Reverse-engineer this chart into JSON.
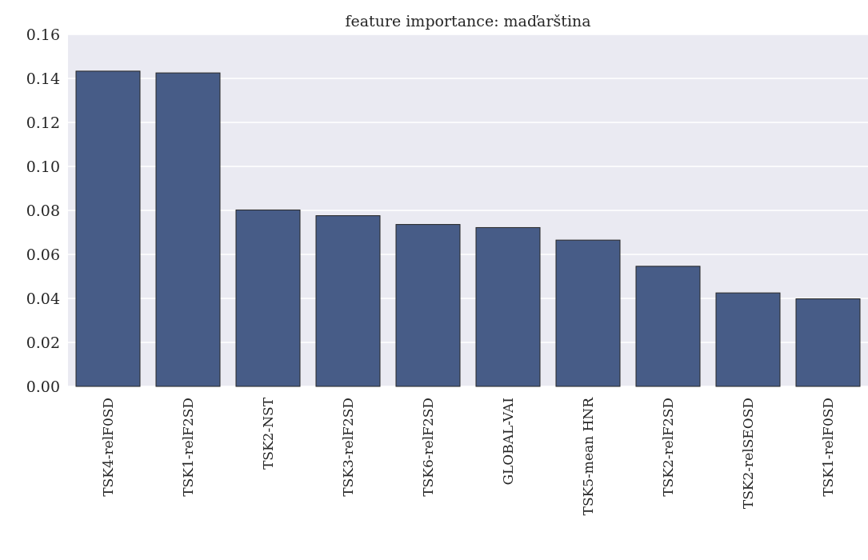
{
  "chart_data": {
    "type": "bar",
    "title": "feature importance: maďarština",
    "categories": [
      "TSK4-relF0SD",
      "TSK1-relF2SD",
      "TSK2-NST",
      "TSK3-relF2SD",
      "TSK6-relF2SD",
      "GLOBAL-VAI",
      "TSK5-mean HNR",
      "TSK2-relF2SD",
      "TSK2-relSEOSD",
      "TSK1-relF0SD"
    ],
    "values": [
      0.1433,
      0.1425,
      0.0802,
      0.0776,
      0.0736,
      0.0722,
      0.0665,
      0.0546,
      0.0425,
      0.0398
    ],
    "color": "#475c87",
    "ylim": [
      0,
      0.16
    ],
    "yticks": [
      {
        "value": 0,
        "label": "0.00"
      },
      {
        "value": 0.02,
        "label": "0.02"
      },
      {
        "value": 0.04,
        "label": "0.04"
      },
      {
        "value": 0.06,
        "label": "0.06"
      },
      {
        "value": 0.08,
        "label": "0.08"
      },
      {
        "value": 0.1,
        "label": "0.10"
      },
      {
        "value": 0.12,
        "label": "0.12"
      },
      {
        "value": 0.14,
        "label": "0.14"
      },
      {
        "value": 0.16,
        "label": "0.16"
      }
    ],
    "grid": "y"
  }
}
